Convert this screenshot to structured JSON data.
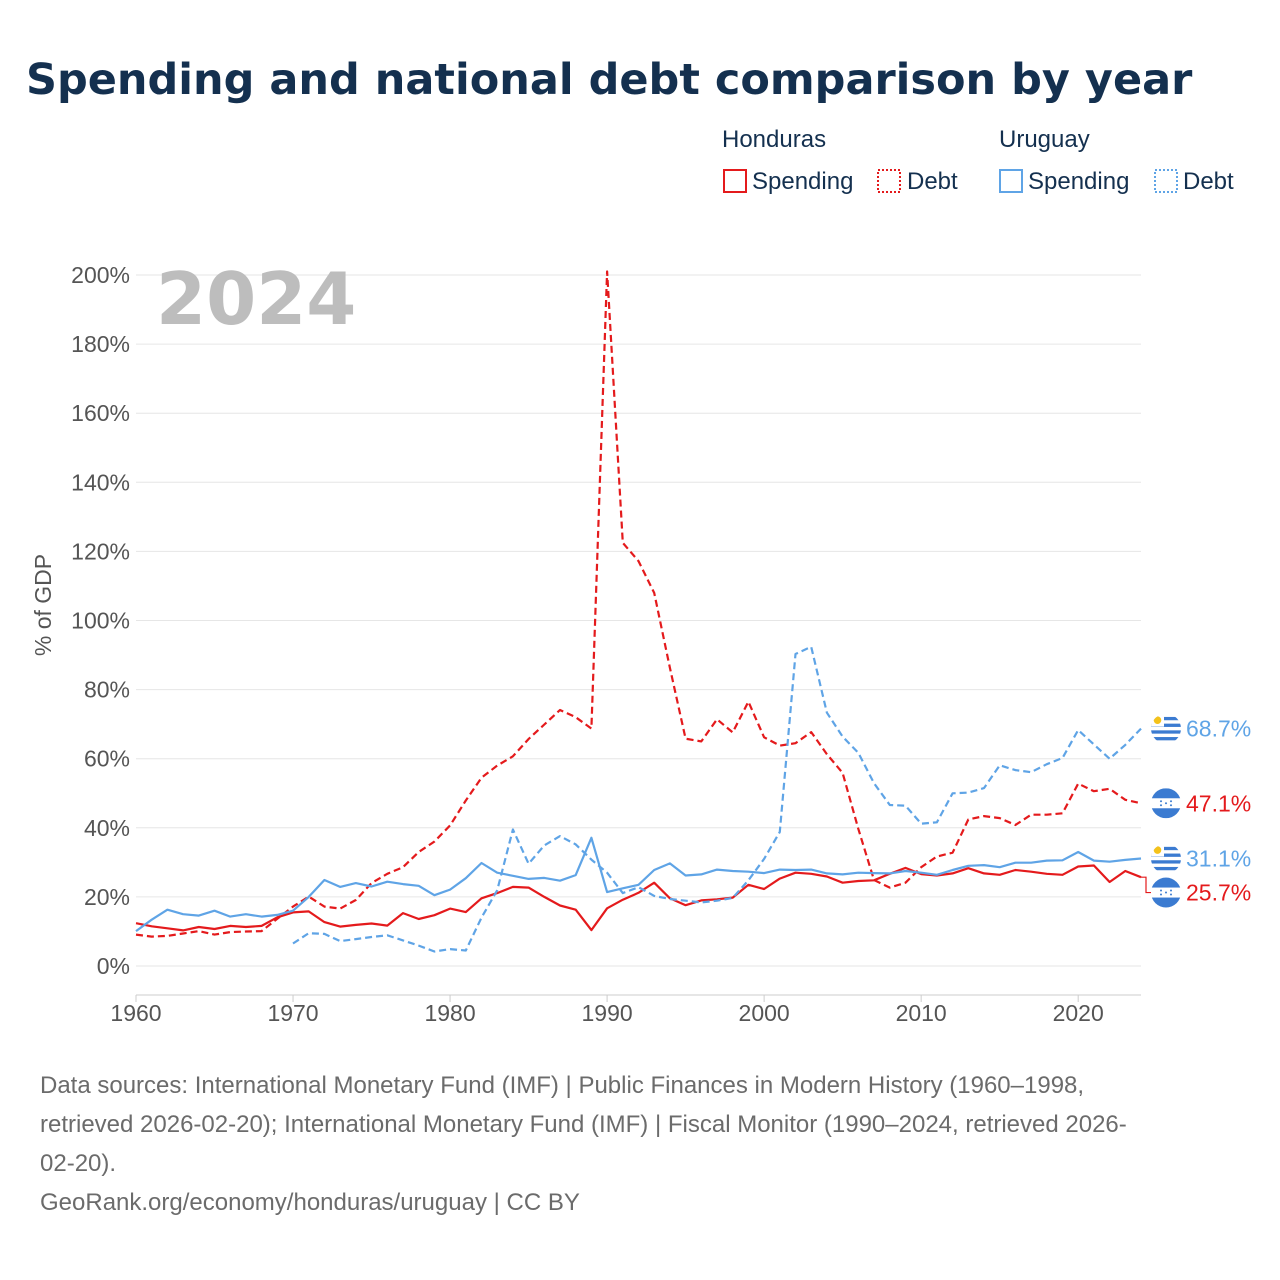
{
  "chart_data": {
    "type": "line",
    "title": "Spending and national debt comparison by year",
    "current_year_label": "2024",
    "ylabel": "% of GDP",
    "xlabel": "",
    "xlim": [
      1960,
      2024
    ],
    "ylim": [
      0,
      200
    ],
    "x_ticks": [
      "1960",
      "1970",
      "1980",
      "1990",
      "2000",
      "2010",
      "2020"
    ],
    "y_ticks": [
      "0%",
      "20%",
      "40%",
      "60%",
      "80%",
      "100%",
      "120%",
      "140%",
      "160%",
      "180%",
      "200%"
    ],
    "legend": {
      "placement": "top-right",
      "groups": [
        {
          "country": "Honduras",
          "spending_label": "Spending",
          "debt_label": "Debt"
        },
        {
          "country": "Uruguay",
          "spending_label": "Spending",
          "debt_label": "Debt"
        }
      ]
    },
    "series": [
      {
        "name": "Honduras Spending",
        "country": "Honduras",
        "kind": "spending",
        "color": "#e41a1c",
        "dashed": false,
        "end_label": "25.7%",
        "x": [
          1960,
          1961,
          1962,
          1963,
          1964,
          1965,
          1966,
          1967,
          1968,
          1969,
          1970,
          1971,
          1972,
          1973,
          1974,
          1975,
          1976,
          1977,
          1978,
          1979,
          1980,
          1981,
          1982,
          1983,
          1984,
          1985,
          1986,
          1987,
          1988,
          1989,
          1990,
          1991,
          1992,
          1993,
          1994,
          1995,
          1996,
          1997,
          1998,
          1999,
          2000,
          2001,
          2002,
          2003,
          2004,
          2005,
          2006,
          2007,
          2008,
          2009,
          2010,
          2011,
          2012,
          2013,
          2014,
          2015,
          2016,
          2017,
          2018,
          2019,
          2020,
          2021,
          2022,
          2023,
          2024
        ],
        "values": [
          12.4,
          11.5,
          10.9,
          10.3,
          11.3,
          10.7,
          11.6,
          11.3,
          11.6,
          14.1,
          15.5,
          15.8,
          12.7,
          11.4,
          11.9,
          12.3,
          11.7,
          15.3,
          13.6,
          14.7,
          16.6,
          15.6,
          19.6,
          21.1,
          22.9,
          22.7,
          20.0,
          17.5,
          16.3,
          10.4,
          16.7,
          19.2,
          21.2,
          24.1,
          19.6,
          17.6,
          19.0,
          19.3,
          19.8,
          23.5,
          22.3,
          25.3,
          27.0,
          26.7,
          25.9,
          24.1,
          24.6,
          24.8,
          26.7,
          28.4,
          26.6,
          26.2,
          26.8,
          28.3,
          26.8,
          26.4,
          27.8,
          27.3,
          26.7,
          26.4,
          28.8,
          29.1,
          24.3,
          27.5,
          25.7
        ]
      },
      {
        "name": "Honduras Debt",
        "country": "Honduras",
        "kind": "debt",
        "color": "#e41a1c",
        "dashed": true,
        "end_label": "47.1%",
        "x": [
          1960,
          1961,
          1962,
          1963,
          1964,
          1965,
          1966,
          1967,
          1968,
          1969,
          1970,
          1971,
          1972,
          1973,
          1974,
          1975,
          1976,
          1977,
          1978,
          1979,
          1980,
          1981,
          1982,
          1983,
          1984,
          1985,
          1986,
          1987,
          1988,
          1989,
          1990,
          1991,
          1992,
          1993,
          1994,
          1995,
          1996,
          1997,
          1998,
          1999,
          2000,
          2001,
          2002,
          2003,
          2004,
          2005,
          2006,
          2007,
          2008,
          2009,
          2010,
          2011,
          2012,
          2013,
          2014,
          2015,
          2016,
          2017,
          2018,
          2019,
          2020,
          2021,
          2022,
          2023,
          2024
        ],
        "values": [
          9.1,
          8.5,
          8.7,
          9.4,
          10.1,
          9.1,
          9.8,
          10.0,
          10.1,
          13.7,
          17.2,
          20.1,
          17.2,
          16.6,
          19.1,
          24.0,
          26.7,
          28.6,
          33.0,
          36.0,
          40.7,
          47.9,
          54.5,
          58.0,
          60.7,
          65.7,
          69.9,
          74.1,
          72.0,
          68.7,
          201.0,
          122.5,
          117.2,
          108.0,
          86.3,
          65.8,
          65.0,
          71.4,
          67.6,
          76.5,
          66.2,
          63.8,
          64.5,
          67.7,
          61.3,
          55.9,
          39.7,
          24.9,
          22.7,
          24.1,
          28.6,
          31.7,
          32.8,
          42.4,
          43.4,
          42.8,
          40.8,
          43.8,
          43.8,
          44.2,
          52.8,
          50.6,
          51.3,
          48.1,
          47.1
        ]
      },
      {
        "name": "Uruguay Spending",
        "country": "Uruguay",
        "kind": "spending",
        "color": "#5fa4e6",
        "dashed": false,
        "end_label": "31.1%",
        "x": [
          1960,
          1961,
          1962,
          1963,
          1964,
          1965,
          1966,
          1967,
          1968,
          1969,
          1970,
          1971,
          1972,
          1973,
          1974,
          1975,
          1976,
          1977,
          1978,
          1979,
          1980,
          1981,
          1982,
          1983,
          1984,
          1985,
          1986,
          1987,
          1988,
          1989,
          1990,
          1991,
          1992,
          1993,
          1994,
          1995,
          1996,
          1997,
          1998,
          1999,
          2000,
          2001,
          2002,
          2003,
          2004,
          2005,
          2006,
          2007,
          2008,
          2009,
          2010,
          2011,
          2012,
          2013,
          2014,
          2015,
          2016,
          2017,
          2018,
          2019,
          2020,
          2021,
          2022,
          2023,
          2024
        ],
        "values": [
          10.1,
          13.4,
          16.3,
          15.0,
          14.6,
          16.0,
          14.3,
          15.0,
          14.3,
          14.8,
          16.0,
          20.0,
          24.9,
          22.9,
          24.0,
          23.0,
          24.4,
          23.7,
          23.2,
          20.5,
          22.1,
          25.4,
          29.8,
          27.0,
          26.1,
          25.2,
          25.5,
          24.7,
          26.3,
          37.1,
          21.4,
          22.5,
          23.5,
          27.8,
          29.7,
          26.2,
          26.5,
          27.9,
          27.5,
          27.3,
          26.9,
          27.9,
          27.8,
          27.9,
          26.8,
          26.5,
          27.0,
          26.9,
          26.8,
          27.5,
          27.0,
          26.4,
          27.8,
          29.0,
          29.2,
          28.6,
          29.9,
          29.9,
          30.5,
          30.6,
          33.0,
          30.5,
          30.2,
          30.7,
          31.1
        ]
      },
      {
        "name": "Uruguay Debt",
        "country": "Uruguay",
        "kind": "debt",
        "color": "#5fa4e6",
        "dashed": true,
        "end_label": "68.7%",
        "x": [
          1970,
          1971,
          1972,
          1973,
          1974,
          1975,
          1976,
          1977,
          1978,
          1979,
          1980,
          1981,
          1982,
          1983,
          1984,
          1985,
          1986,
          1987,
          1988,
          1989,
          1990,
          1991,
          1992,
          1993,
          1994,
          1995,
          1996,
          1997,
          1998,
          1999,
          2000,
          2001,
          2002,
          2003,
          2004,
          2005,
          2006,
          2007,
          2008,
          2009,
          2010,
          2011,
          2012,
          2013,
          2014,
          2015,
          2016,
          2017,
          2018,
          2019,
          2020,
          2021,
          2022,
          2023,
          2024
        ],
        "values": [
          6.5,
          9.5,
          9.3,
          7.2,
          7.8,
          8.4,
          8.9,
          7.4,
          5.9,
          4.2,
          4.9,
          4.5,
          14.0,
          21.9,
          39.5,
          29.6,
          34.9,
          37.6,
          35.2,
          30.8,
          27.0,
          21.1,
          22.8,
          20.3,
          19.4,
          18.9,
          18.4,
          18.9,
          19.7,
          24.8,
          31.0,
          38.8,
          90.3,
          92.4,
          73.3,
          66.4,
          61.7,
          52.9,
          46.6,
          46.4,
          41.2,
          41.6,
          50.0,
          50.2,
          51.5,
          58.1,
          56.7,
          56.1,
          58.4,
          60.2,
          68.3,
          64.1,
          60.0,
          64.0,
          68.7
        ]
      }
    ],
    "footer": {
      "sources_line1": "Data sources: International Monetary Fund (IMF) | Public Finances in Modern History (1960–1998,",
      "sources_line2": "retrieved 2026-02-20); International Monetary Fund (IMF) | Fiscal Monitor (1990–2024, retrieved 2026-",
      "sources_line3": "02-20).",
      "credit": "GeoRank.org/economy/honduras/uruguay | CC BY"
    }
  }
}
